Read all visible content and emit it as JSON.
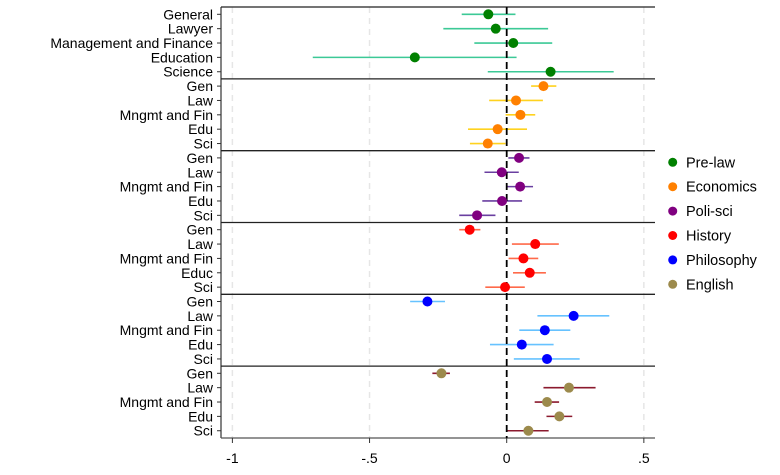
{
  "chart_data": {
    "type": "scatter",
    "subtype": "coefficient-plot-with-confidence-intervals",
    "xlim": [
      -1.03,
      0.55
    ],
    "xticks": [
      -1,
      -0.5,
      0,
      0.5
    ],
    "xtick_labels": [
      "-1",
      "-.5",
      "0",
      ".5"
    ],
    "reference_line": 0,
    "grid": "vertical dashed",
    "legend_position": "right",
    "groups": [
      {
        "name": "Pre-law",
        "point_color": "#008000",
        "ci_color": "#3cc996",
        "rows": [
          {
            "label": "General",
            "est": -0.067,
            "lo": -0.164,
            "hi": 0.032
          },
          {
            "label": "Lawyer",
            "est": -0.04,
            "lo": -0.231,
            "hi": 0.151
          },
          {
            "label": "Management and Finance",
            "est": 0.024,
            "lo": -0.118,
            "hi": 0.166
          },
          {
            "label": "Education",
            "est": -0.335,
            "lo": -0.707,
            "hi": 0.036
          },
          {
            "label": "Science",
            "est": 0.16,
            "lo": -0.069,
            "hi": 0.39
          }
        ]
      },
      {
        "name": "Economics",
        "point_color": "#ff8000",
        "ci_color": "#ffd21f",
        "rows": [
          {
            "label": "Gen",
            "est": 0.134,
            "lo": 0.089,
            "hi": 0.181
          },
          {
            "label": "Law",
            "est": 0.034,
            "lo": -0.064,
            "hi": 0.132
          },
          {
            "label": "Mngmt and Fin",
            "est": 0.05,
            "lo": -0.004,
            "hi": 0.104
          },
          {
            "label": "Edu",
            "est": -0.033,
            "lo": -0.141,
            "hi": 0.074
          },
          {
            "label": "Sci",
            "est": -0.069,
            "lo": -0.134,
            "hi": -0.004
          }
        ]
      },
      {
        "name": "Poli-sci",
        "point_color": "#800080",
        "ci_color": "#6a3fa0",
        "rows": [
          {
            "label": "Gen",
            "est": 0.045,
            "lo": 0.006,
            "hi": 0.083
          },
          {
            "label": "Law",
            "est": -0.018,
            "lo": -0.081,
            "hi": 0.044
          },
          {
            "label": "Mngmt and Fin",
            "est": 0.049,
            "lo": 0.0,
            "hi": 0.096
          },
          {
            "label": "Edu",
            "est": -0.017,
            "lo": -0.089,
            "hi": 0.056
          },
          {
            "label": "Sci",
            "est": -0.108,
            "lo": -0.173,
            "hi": -0.041
          }
        ]
      },
      {
        "name": "History",
        "point_color": "#ff0000",
        "ci_color": "#ff6a4a",
        "rows": [
          {
            "label": "Gen",
            "est": -0.135,
            "lo": -0.173,
            "hi": -0.096
          },
          {
            "label": "Law",
            "est": 0.104,
            "lo": 0.019,
            "hi": 0.19
          },
          {
            "label": "Mngmt and Fin",
            "est": 0.061,
            "lo": 0.007,
            "hi": 0.115
          },
          {
            "label": "Educ",
            "est": 0.084,
            "lo": 0.023,
            "hi": 0.143
          },
          {
            "label": "Sci",
            "est": -0.006,
            "lo": -0.078,
            "hi": 0.066
          }
        ]
      },
      {
        "name": "Philosophy",
        "point_color": "#0000ff",
        "ci_color": "#66c2ff",
        "rows": [
          {
            "label": "Gen",
            "est": -0.289,
            "lo": -0.352,
            "hi": -0.225
          },
          {
            "label": "Law",
            "est": 0.244,
            "lo": 0.112,
            "hi": 0.374
          },
          {
            "label": "Mngmt and Fin",
            "est": 0.139,
            "lo": 0.046,
            "hi": 0.232
          },
          {
            "label": "Edu",
            "est": 0.055,
            "lo": -0.061,
            "hi": 0.171
          },
          {
            "label": "Sci",
            "est": 0.147,
            "lo": 0.026,
            "hi": 0.266
          }
        ]
      },
      {
        "name": "English",
        "point_color": "#9c8a4c",
        "ci_color": "#8b1a2e",
        "rows": [
          {
            "label": "Gen",
            "est": -0.238,
            "lo": -0.271,
            "hi": -0.207
          },
          {
            "label": "Law",
            "est": 0.227,
            "lo": 0.134,
            "hi": 0.324
          },
          {
            "label": "Mngmt and Fin",
            "est": 0.147,
            "lo": 0.102,
            "hi": 0.191
          },
          {
            "label": "Edu",
            "est": 0.192,
            "lo": 0.145,
            "hi": 0.239
          },
          {
            "label": "Sci",
            "est": 0.079,
            "lo": 0.002,
            "hi": 0.153
          }
        ]
      }
    ]
  }
}
